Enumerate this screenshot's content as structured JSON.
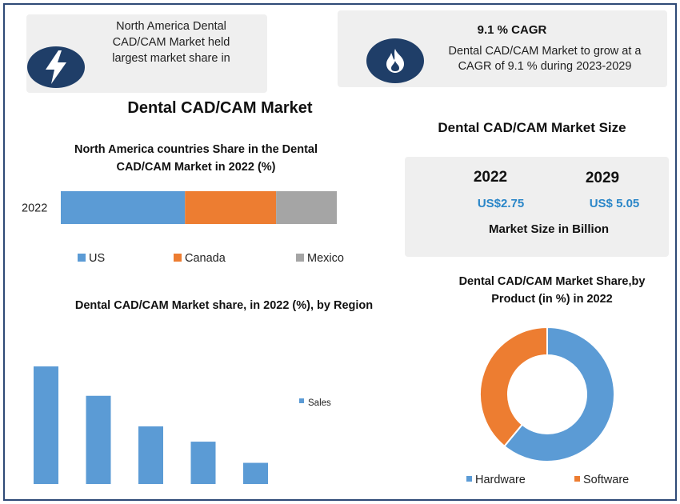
{
  "colors": {
    "blue": "#5b9bd5",
    "orange": "#ed7d31",
    "gray": "#a5a5a5",
    "navy": "#1f3e68",
    "value_blue": "#2a86c8",
    "card_bg": "#efefef"
  },
  "callouts": {
    "north_america": {
      "icon": "lightning-bolt-icon",
      "text": "North America Dental CAD/CAM Market held largest market share in"
    },
    "cagr": {
      "icon": "flame-icon",
      "heading": "9.1 % CAGR",
      "text": "Dental CAD/CAM Market to grow at a CAGR of 9.1 % during 2023-2029"
    }
  },
  "main_title": "Dental CAD/CAM Market",
  "market_size": {
    "title": "Dental CAD/CAM Market Size",
    "years": [
      {
        "year": "2022",
        "value": "US$2.75"
      },
      {
        "year": "2029",
        "value": "US$ 5.05"
      }
    ],
    "unit_label": "Market Size in Billion"
  },
  "chart_data": [
    {
      "type": "bar",
      "orientation": "horizontal-stacked-100",
      "title": "North America countries Share in the Dental CAD/CAM Market  in 2022 (%)",
      "categories": [
        "2022"
      ],
      "series": [
        {
          "name": "US",
          "values": [
            45
          ]
        },
        {
          "name": "Canada",
          "values": [
            33
          ]
        },
        {
          "name": "Mexico",
          "values": [
            22
          ]
        }
      ],
      "xlim": [
        0,
        100
      ],
      "legend": "bottom",
      "grid": false
    },
    {
      "type": "bar",
      "title": "Dental CAD/CAM Market share, in 2022 (%), by Region",
      "categories": [
        "",
        "",
        "",
        "",
        ""
      ],
      "series": [
        {
          "name": "Sales",
          "values": [
            100,
            75,
            49,
            36,
            18
          ]
        }
      ],
      "ylim": [
        0,
        100
      ],
      "legend": "right",
      "grid": false
    },
    {
      "type": "pie",
      "variant": "donut",
      "title": "Dental CAD/CAM Market Share,by Product  (in %) in 2022",
      "labels": [
        "Hardware",
        "Software"
      ],
      "values": [
        61,
        39
      ],
      "legend": "bottom"
    }
  ]
}
